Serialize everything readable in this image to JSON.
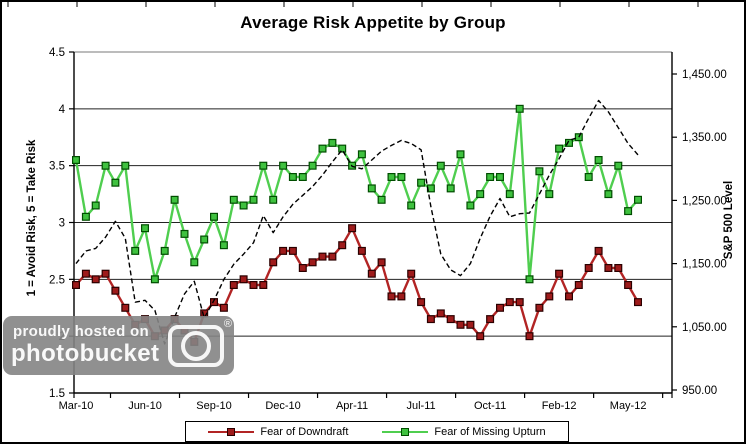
{
  "title": "Average Risk Appetite by Group",
  "watermark": {
    "line1": "proudly hosted on",
    "line2": "photobucket",
    "registered_mark": "®"
  },
  "chart_data": {
    "type": "line",
    "title": "Average Risk Appetite by Group",
    "x_tick_labels": [
      "Mar-10",
      "Jun-10",
      "Sep-10",
      "Dec-10",
      "Apr-11",
      "Jul-11",
      "Oct-11",
      "Feb-12",
      "May-12"
    ],
    "x_tick_indices": [
      0,
      7,
      14,
      21,
      28,
      35,
      42,
      49,
      56
    ],
    "n_points": 58,
    "left_axis": {
      "label": "1 = Avoid Risk, 5 = Take Risk",
      "min": 1.5,
      "max": 4.5,
      "tick_labels": [
        "4.5",
        "4",
        "3.5",
        "3",
        "2.5",
        "2",
        "1.5"
      ],
      "tick_values": [
        4.5,
        4,
        3.5,
        3,
        2.5,
        2,
        1.5
      ],
      "grid": true
    },
    "right_axis": {
      "label": "S&P 500 Level",
      "min": 950,
      "max": 1490,
      "tick_labels": [
        "1,450.00",
        "1,350.00",
        "1,250.00",
        "1,150.00",
        "1,050.00",
        "950.00"
      ],
      "tick_values": [
        1450,
        1350,
        1250,
        1150,
        1050,
        950
      ]
    },
    "legend_position": "bottom",
    "series": [
      {
        "name": "Fear of Downdraft",
        "axis": "left",
        "marker": "square",
        "in_legend": true,
        "color": "#B22424",
        "marker_fill": "#9E1B1B",
        "marker_edge": "#2B0000",
        "values": [
          2.45,
          2.55,
          2.5,
          2.55,
          2.4,
          2.25,
          2.1,
          2.15,
          2.0,
          2.05,
          2.15,
          2.05,
          1.95,
          2.2,
          2.3,
          2.25,
          2.45,
          2.5,
          2.45,
          2.45,
          2.65,
          2.75,
          2.75,
          2.6,
          2.65,
          2.7,
          2.7,
          2.8,
          2.95,
          2.75,
          2.55,
          2.65,
          2.35,
          2.35,
          2.55,
          2.3,
          2.15,
          2.2,
          2.15,
          2.1,
          2.1,
          2.0,
          2.15,
          2.25,
          2.3,
          2.3,
          2.0,
          2.25,
          2.35,
          2.55,
          2.35,
          2.45,
          2.6,
          2.75,
          2.6,
          2.6,
          2.45,
          2.3
        ]
      },
      {
        "name": "Fear of Missing Upturn",
        "axis": "left",
        "marker": "square",
        "in_legend": true,
        "color": "#4FCE4F",
        "marker_fill": "#3FC13F",
        "marker_edge": "#004D00",
        "values": [
          3.55,
          3.05,
          3.15,
          3.5,
          3.35,
          3.5,
          2.75,
          2.95,
          2.5,
          2.75,
          3.2,
          2.9,
          2.65,
          2.85,
          3.05,
          2.8,
          3.2,
          3.15,
          3.2,
          3.5,
          3.2,
          3.5,
          3.4,
          3.4,
          3.5,
          3.65,
          3.7,
          3.65,
          3.5,
          3.6,
          3.3,
          3.2,
          3.4,
          3.4,
          3.15,
          3.35,
          3.3,
          3.5,
          3.3,
          3.6,
          3.15,
          3.25,
          3.4,
          3.4,
          3.25,
          4.0,
          2.5,
          3.45,
          3.25,
          3.65,
          3.7,
          3.75,
          3.4,
          3.55,
          3.25,
          3.5,
          3.1,
          3.2
        ]
      },
      {
        "name": "S&P 500",
        "axis": "right",
        "marker": "none",
        "in_legend": false,
        "style": "dashed",
        "color": "#000000",
        "values": [
          1150,
          1170,
          1174,
          1192,
          1217,
          1190,
          1089,
          1092,
          1076,
          1023,
          1065,
          1102,
          1122,
          1064,
          1092,
          1125,
          1149,
          1165,
          1183,
          1226,
          1199,
          1224,
          1244,
          1258,
          1272,
          1290,
          1311,
          1330,
          1304,
          1300,
          1314,
          1328,
          1337,
          1345,
          1340,
          1330,
          1240,
          1165,
          1140,
          1131,
          1150,
          1190,
          1225,
          1253,
          1224,
          1229,
          1230,
          1260,
          1290,
          1316,
          1345,
          1350,
          1380,
          1408,
          1390,
          1365,
          1340,
          1322
        ]
      }
    ]
  }
}
